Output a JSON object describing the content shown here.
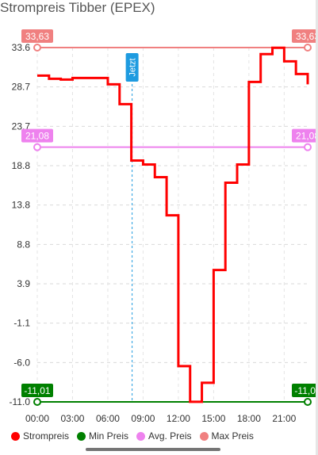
{
  "page": {
    "title": "Strompreis Tibber (EPEX)"
  },
  "chart_data": {
    "type": "line",
    "step": true,
    "title": "Strompreis Tibber (EPEX)",
    "yticks": [
      "33.6",
      "28.7",
      "23.7",
      "18.8",
      "13.8",
      "8.8",
      "3.9",
      "-1.1",
      "-6.0",
      "-11.0"
    ],
    "xticks": [
      "00:00",
      "03:00",
      "06:00",
      "09:00",
      "12:00",
      "15:00",
      "18:00",
      "21:00"
    ],
    "xlim": [
      0,
      23
    ],
    "ylim": [
      -11.01,
      33.63
    ],
    "grid": true,
    "legend_position": "bottom",
    "series": [
      {
        "name": "Strompreis",
        "color": "#ff0000",
        "x": [
          0,
          1,
          2,
          3,
          4,
          5,
          6,
          7,
          8,
          9,
          10,
          11,
          12,
          13,
          14,
          15,
          16,
          17,
          18,
          19,
          20,
          21,
          22,
          23
        ],
        "values": [
          30.1,
          29.7,
          29.6,
          29.8,
          29.8,
          29.8,
          29.0,
          26.5,
          19.4,
          18.9,
          17.3,
          12.5,
          -6.5,
          -11.0,
          -8.6,
          5.6,
          16.6,
          18.9,
          29.3,
          32.8,
          33.6,
          31.9,
          30.3,
          29.0
        ]
      },
      {
        "name": "Min Preis",
        "color": "#008000",
        "value": -11.01,
        "label": "-11,01"
      },
      {
        "name": "Avg. Preis",
        "color": "#ee82ee",
        "value": 21.08,
        "label": "21,08"
      },
      {
        "name": "Max Preis",
        "color": "#f08080",
        "value": 33.63,
        "label": "33,63"
      }
    ],
    "now_marker": {
      "label": "Jetzt",
      "x": 8.0,
      "color": "#1e9be0"
    }
  },
  "legend": [
    {
      "label": "Strompreis",
      "color": "#ff0000"
    },
    {
      "label": "Min Preis",
      "color": "#008000"
    },
    {
      "label": "Avg. Preis",
      "color": "#ee82ee"
    },
    {
      "label": "Max Preis",
      "color": "#f08080"
    }
  ]
}
